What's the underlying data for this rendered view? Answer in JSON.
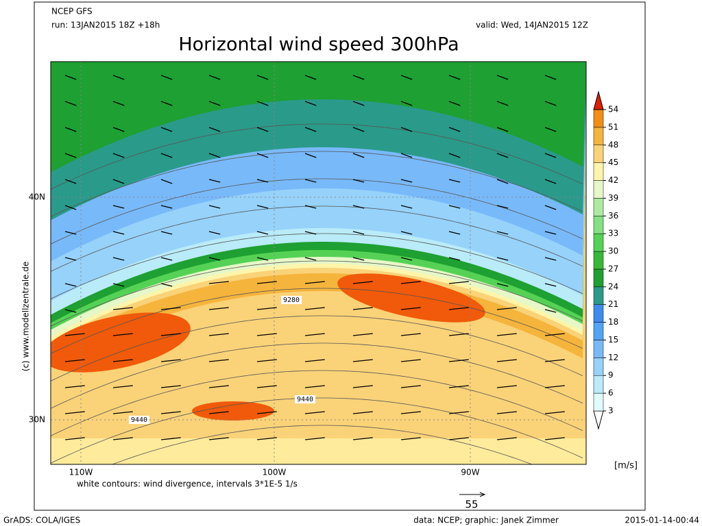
{
  "header": {
    "model": "NCEP GFS",
    "run": "run: 13JAN2015 18Z +18h",
    "valid": "valid: Wed, 14JAN2015 12Z",
    "title": "Horizontal wind speed 300hPa"
  },
  "colorbar": {
    "levels": [
      3,
      6,
      9,
      12,
      15,
      18,
      21,
      24,
      27,
      30,
      33,
      36,
      39,
      42,
      45,
      48,
      51,
      54
    ],
    "colors": [
      "#ffffff",
      "#e1fafa",
      "#b9ebf8",
      "#96d2fa",
      "#78b9fa",
      "#50a5f5",
      "#3c8cf0",
      "#2a9a8a",
      "#1ea032",
      "#37b937",
      "#55d255",
      "#82e182",
      "#aaeba0",
      "#e6f7c8",
      "#fff5aa",
      "#fad278",
      "#f5b43c",
      "#f58c14",
      "#f05a0a",
      "#e11e00"
    ],
    "unit": "[m/s]"
  },
  "axes": {
    "lat_labels": [
      "40N",
      "30N"
    ],
    "lon_labels": [
      "110W",
      "100W",
      "90W"
    ]
  },
  "contour_labels": [
    "9280",
    "9440",
    "9440"
  ],
  "caption": "white contours: wind divergence, intervals 3*1E-5 1/s",
  "copyright": "(c) www.modellzentrale.de",
  "reference_vector": "55",
  "footer": {
    "left": "GrADS: COLA/IGES",
    "center": "data: NCEP; graphic: Janek Zimmer",
    "right": "2015-01-14-00:44"
  }
}
